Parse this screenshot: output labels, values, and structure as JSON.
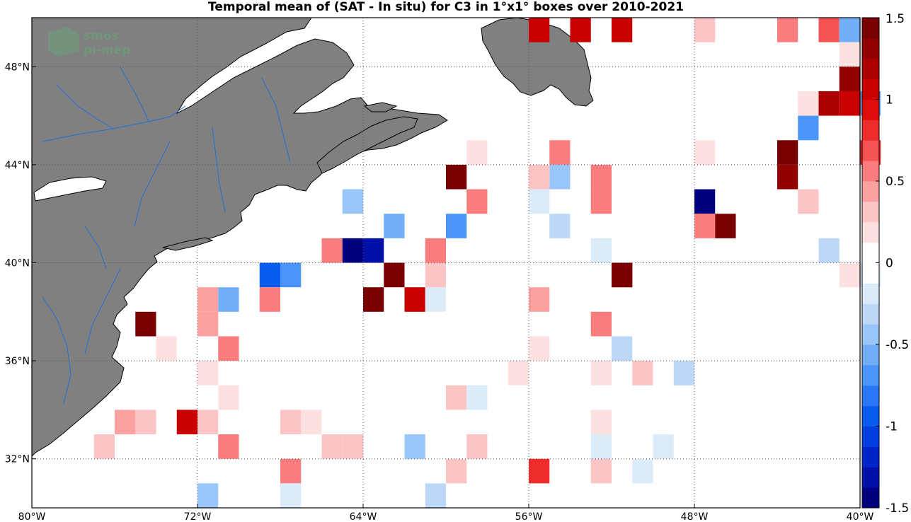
{
  "title": "Temporal mean of (SAT - In situ) for C3 in 1°x1° boxes over 2010-2021",
  "logo": {
    "line1": "smos",
    "line2": "pi-mep"
  },
  "map": {
    "lon_range": [
      -80,
      -40
    ],
    "lat_range": [
      30,
      50
    ],
    "lon_ticks": [
      {
        "value": -80,
        "label": "80°W"
      },
      {
        "value": -72,
        "label": "72°W"
      },
      {
        "value": -64,
        "label": "64°W"
      },
      {
        "value": -56,
        "label": "56°W"
      },
      {
        "value": -48,
        "label": "48°W"
      },
      {
        "value": -40,
        "label": "40°W"
      }
    ],
    "lat_ticks": [
      {
        "value": 32,
        "label": "32°N"
      },
      {
        "value": 36,
        "label": "36°N"
      },
      {
        "value": 40,
        "label": "40°N"
      },
      {
        "value": 44,
        "label": "44°N"
      },
      {
        "value": 48,
        "label": "48°N"
      }
    ],
    "land_color": "#808080",
    "river_color": "#1f6fd8",
    "grid": "dotted"
  },
  "colorbar": {
    "range": [
      -1.5,
      1.5
    ],
    "ticks": [
      {
        "value": 1.5,
        "label": "1.5"
      },
      {
        "value": 1,
        "label": "1"
      },
      {
        "value": 0.5,
        "label": "0.5"
      },
      {
        "value": 0,
        "label": "0"
      },
      {
        "value": -0.5,
        "label": "-0.5"
      },
      {
        "value": -1,
        "label": "-1"
      },
      {
        "value": -1.5,
        "label": "-1.5"
      }
    ],
    "colors": [
      "#00007f",
      "#0010a8",
      "#0024c8",
      "#0040e0",
      "#0a5cf0",
      "#2a78f8",
      "#4a94fa",
      "#70aef8",
      "#98c6f8",
      "#bcd8f6",
      "#dcebfa",
      "#ffffff",
      "#ffffff",
      "#fde0e0",
      "#fcc4c4",
      "#fca0a0",
      "#fa7c7c",
      "#f65454",
      "#ee2c2c",
      "#e00c0c",
      "#c80000",
      "#ac0000",
      "#920000",
      "#780000"
    ]
  },
  "chart_data": {
    "type": "heatmap",
    "title": "Temporal mean of (SAT - In situ) for C3 in 1°x1° boxes over 2010-2021",
    "x_axis": "longitude",
    "y_axis": "latitude",
    "cell_size_deg": 1,
    "cells": [
      {
        "lon": -48,
        "lat": 49,
        "value": 0.3
      },
      {
        "lon": -56,
        "lat": 49,
        "value": 1.1
      },
      {
        "lon": -52,
        "lat": 49,
        "value": 1.0
      },
      {
        "lon": -54,
        "lat": 49,
        "value": 1.1
      },
      {
        "lon": -42,
        "lat": 49,
        "value": 0.7
      },
      {
        "lon": -44,
        "lat": 49,
        "value": 0.6
      },
      {
        "lon": -41,
        "lat": 49,
        "value": -0.6
      },
      {
        "lon": -41,
        "lat": 48,
        "value": 0.15
      },
      {
        "lon": -41,
        "lat": 47,
        "value": 1.3
      },
      {
        "lon": -41,
        "lat": 46,
        "value": 1.0
      },
      {
        "lon": -42,
        "lat": 46,
        "value": 1.2
      },
      {
        "lon": -43,
        "lat": 46,
        "value": 0.15
      },
      {
        "lon": -40,
        "lat": 46,
        "value": -0.6
      },
      {
        "lon": -43,
        "lat": 45,
        "value": -0.7
      },
      {
        "lon": -44,
        "lat": 44,
        "value": 1.4
      },
      {
        "lon": -40,
        "lat": 44,
        "value": 0.8
      },
      {
        "lon": -48,
        "lat": 44,
        "value": 0.2
      },
      {
        "lon": -44,
        "lat": 43,
        "value": 1.3
      },
      {
        "lon": -43,
        "lat": 42,
        "value": 0.3
      },
      {
        "lon": -48,
        "lat": 42,
        "value": -1.5
      },
      {
        "lon": -48,
        "lat": 41,
        "value": 0.6
      },
      {
        "lon": -47,
        "lat": 41,
        "value": 1.4
      },
      {
        "lon": -42,
        "lat": 40,
        "value": -0.3
      },
      {
        "lon": -41,
        "lat": 39,
        "value": 0.2
      },
      {
        "lon": -40,
        "lat": 39,
        "value": -0.15
      },
      {
        "lon": -53,
        "lat": 40,
        "value": -0.15
      },
      {
        "lon": -52,
        "lat": 39,
        "value": 1.4
      },
      {
        "lon": -53,
        "lat": 37,
        "value": 0.6
      },
      {
        "lon": -52,
        "lat": 36,
        "value": -0.35
      },
      {
        "lon": -53,
        "lat": 35,
        "value": 0.15
      },
      {
        "lon": -51,
        "lat": 35,
        "value": 0.3
      },
      {
        "lon": -49,
        "lat": 35,
        "value": -0.3
      },
      {
        "lon": -53,
        "lat": 43,
        "value": 0.6
      },
      {
        "lon": -53,
        "lat": 42,
        "value": 0.6
      },
      {
        "lon": -55,
        "lat": 44,
        "value": 0.5
      },
      {
        "lon": -55,
        "lat": 43,
        "value": -0.45
      },
      {
        "lon": -56,
        "lat": 43,
        "value": 0.3
      },
      {
        "lon": -56,
        "lat": 42,
        "value": -0.15
      },
      {
        "lon": -55,
        "lat": 41,
        "value": -0.35
      },
      {
        "lon": -56,
        "lat": 38,
        "value": 0.45
      },
      {
        "lon": -56,
        "lat": 36,
        "value": 0.15
      },
      {
        "lon": -57,
        "lat": 35,
        "value": 0.2
      },
      {
        "lon": -59,
        "lat": 44,
        "value": 0.15
      },
      {
        "lon": -60,
        "lat": 43,
        "value": 1.4
      },
      {
        "lon": -59,
        "lat": 42,
        "value": 0.5
      },
      {
        "lon": -60,
        "lat": 41,
        "value": -0.75
      },
      {
        "lon": -61,
        "lat": 40,
        "value": 0.6
      },
      {
        "lon": -61,
        "lat": 39,
        "value": 0.3
      },
      {
        "lon": -60,
        "lat": 34,
        "value": 0.3
      },
      {
        "lon": -59,
        "lat": 34,
        "value": -0.15
      },
      {
        "lon": -63,
        "lat": 41,
        "value": -0.55
      },
      {
        "lon": -65,
        "lat": 42,
        "value": -0.45
      },
      {
        "lon": -63,
        "lat": 39,
        "value": 1.4
      },
      {
        "lon": -62,
        "lat": 38,
        "value": 1.1
      },
      {
        "lon": -61,
        "lat": 38,
        "value": -0.25
      },
      {
        "lon": -64,
        "lat": 38,
        "value": 1.4
      },
      {
        "lon": -66,
        "lat": 40,
        "value": 0.5
      },
      {
        "lon": -65,
        "lat": 40,
        "value": -1.4
      },
      {
        "lon": -64,
        "lat": 40,
        "value": -1.3
      },
      {
        "lon": -69,
        "lat": 39,
        "value": -0.9
      },
      {
        "lon": -68,
        "lat": 39,
        "value": -0.75
      },
      {
        "lon": -69,
        "lat": 38,
        "value": 0.55
      },
      {
        "lon": -71,
        "lat": 38,
        "value": -0.6
      },
      {
        "lon": -72,
        "lat": 38,
        "value": 0.45
      },
      {
        "lon": -72,
        "lat": 37,
        "value": 0.45
      },
      {
        "lon": -71,
        "lat": 36,
        "value": 0.5
      },
      {
        "lon": -75,
        "lat": 37,
        "value": 1.4
      },
      {
        "lon": -74,
        "lat": 36,
        "value": 0.15
      },
      {
        "lon": -72,
        "lat": 35,
        "value": 0.2
      },
      {
        "lon": -71,
        "lat": 34,
        "value": 0.2
      },
      {
        "lon": -76,
        "lat": 33,
        "value": 0.45
      },
      {
        "lon": -75,
        "lat": 33,
        "value": 0.3
      },
      {
        "lon": -73,
        "lat": 33,
        "value": 1.1
      },
      {
        "lon": -72,
        "lat": 33,
        "value": 0.3
      },
      {
        "lon": -77,
        "lat": 32,
        "value": 0.35
      },
      {
        "lon": -71,
        "lat": 32,
        "value": 0.6
      },
      {
        "lon": -68,
        "lat": 33,
        "value": 0.3
      },
      {
        "lon": -67,
        "lat": 33,
        "value": 0.15
      },
      {
        "lon": -66,
        "lat": 32,
        "value": 0.35
      },
      {
        "lon": -65,
        "lat": 32,
        "value": 0.35
      },
      {
        "lon": -68,
        "lat": 31,
        "value": 0.55
      },
      {
        "lon": -72,
        "lat": 30,
        "value": -0.45
      },
      {
        "lon": -68,
        "lat": 30,
        "value": -0.15
      },
      {
        "lon": -62,
        "lat": 32,
        "value": -0.45
      },
      {
        "lon": -61,
        "lat": 30,
        "value": -0.3
      },
      {
        "lon": -59,
        "lat": 32,
        "value": 0.35
      },
      {
        "lon": -60,
        "lat": 31,
        "value": 0.35
      },
      {
        "lon": -56,
        "lat": 31,
        "value": 0.85
      },
      {
        "lon": -53,
        "lat": 33,
        "value": 0.15
      },
      {
        "lon": -53,
        "lat": 32,
        "value": -0.15
      },
      {
        "lon": -53,
        "lat": 31,
        "value": 0.3
      },
      {
        "lon": -51,
        "lat": 31,
        "value": -0.15
      },
      {
        "lon": -50,
        "lat": 32,
        "value": -0.2
      },
      {
        "lon": -52,
        "lat": 39,
        "value": 1.4
      }
    ]
  }
}
